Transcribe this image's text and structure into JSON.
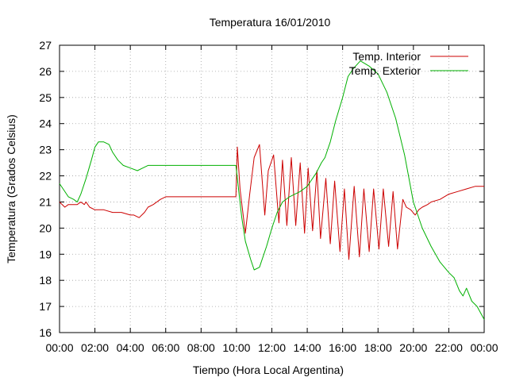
{
  "chart_data": {
    "type": "line",
    "title": "Temperatura 16/01/2010",
    "xlabel": "Tiempo (Hora Local Argentina)",
    "ylabel": "Temperatura (Grados Celsius)",
    "xlim": [
      0,
      24
    ],
    "ylim": [
      16,
      27
    ],
    "x_ticks": [
      0,
      2,
      4,
      6,
      8,
      10,
      12,
      14,
      16,
      18,
      20,
      22,
      24
    ],
    "x_tick_labels": [
      "00:00",
      "02:00",
      "04:00",
      "06:00",
      "08:00",
      "10:00",
      "12:00",
      "14:00",
      "16:00",
      "18:00",
      "20:00",
      "22:00",
      "00:00"
    ],
    "y_ticks": [
      16,
      17,
      18,
      19,
      20,
      21,
      22,
      23,
      24,
      25,
      26,
      27
    ],
    "y_tick_labels": [
      "16",
      "17",
      "18",
      "19",
      "20",
      "21",
      "22",
      "23",
      "24",
      "25",
      "26",
      "27"
    ],
    "grid": true,
    "legend_position": "top-right",
    "series": [
      {
        "name": "Temp. Interior",
        "color": "#cc0000",
        "x": [
          0,
          0.3,
          0.5,
          0.7,
          1.0,
          1.2,
          1.4,
          1.5,
          1.7,
          2.0,
          2.5,
          3.0,
          3.5,
          4.0,
          4.2,
          4.5,
          4.8,
          5.0,
          5.3,
          5.7,
          6.0,
          7.0,
          8.0,
          9.0,
          9.97,
          10.05,
          10.2,
          10.5,
          10.75,
          11.0,
          11.3,
          11.6,
          11.8,
          12.1,
          12.4,
          12.6,
          12.85,
          13.1,
          13.35,
          13.6,
          13.85,
          14.05,
          14.3,
          14.55,
          14.75,
          15.05,
          15.3,
          15.55,
          15.85,
          16.1,
          16.35,
          16.65,
          16.95,
          17.2,
          17.5,
          17.75,
          18.05,
          18.3,
          18.6,
          18.85,
          19.1,
          19.4,
          19.6,
          19.85,
          20.1,
          20.3,
          20.5,
          20.8,
          21.0,
          21.5,
          22.0,
          22.5,
          23.0,
          23.5,
          24.0
        ],
        "values": [
          21.0,
          20.8,
          20.9,
          20.9,
          20.9,
          21.0,
          20.9,
          21.0,
          20.8,
          20.7,
          20.7,
          20.6,
          20.6,
          20.5,
          20.5,
          20.4,
          20.6,
          20.8,
          20.9,
          21.1,
          21.2,
          21.2,
          21.2,
          21.2,
          21.2,
          23.1,
          21.5,
          19.8,
          21.3,
          22.7,
          23.2,
          20.5,
          22.2,
          22.8,
          20.2,
          22.6,
          20.1,
          22.7,
          20.1,
          22.5,
          19.8,
          22.3,
          19.9,
          22.2,
          19.6,
          21.9,
          19.4,
          21.8,
          19.1,
          21.5,
          18.8,
          21.6,
          18.9,
          21.5,
          19.1,
          21.5,
          19.2,
          21.5,
          19.3,
          21.4,
          19.2,
          21.1,
          20.8,
          20.7,
          20.5,
          20.7,
          20.8,
          20.9,
          21.0,
          21.1,
          21.3,
          21.4,
          21.5,
          21.6,
          21.6
        ]
      },
      {
        "name": "Temp. Exterior",
        "color": "#00b000",
        "x": [
          0,
          0.2,
          0.5,
          0.8,
          1.0,
          1.2,
          1.5,
          1.8,
          2.0,
          2.2,
          2.5,
          2.8,
          3.0,
          3.3,
          3.6,
          4.0,
          4.4,
          4.7,
          5.0,
          6.0,
          7.0,
          8.0,
          9.0,
          9.97,
          10.1,
          10.3,
          10.5,
          10.8,
          11.0,
          11.3,
          11.7,
          12.0,
          12.3,
          12.6,
          13.0,
          13.3,
          13.6,
          14.0,
          14.2,
          14.5,
          14.8,
          15.0,
          15.3,
          15.6,
          16.0,
          16.3,
          16.6,
          17.0,
          17.5,
          18.0,
          18.5,
          19.0,
          19.5,
          20.0,
          20.5,
          21.0,
          21.5,
          22.0,
          22.3,
          22.6,
          22.8,
          23.0,
          23.3,
          23.6,
          24.0
        ],
        "values": [
          21.7,
          21.5,
          21.2,
          21.1,
          21.0,
          21.3,
          21.9,
          22.6,
          23.1,
          23.3,
          23.3,
          23.2,
          22.9,
          22.6,
          22.4,
          22.3,
          22.2,
          22.3,
          22.4,
          22.4,
          22.4,
          22.4,
          22.4,
          22.4,
          21.6,
          20.4,
          19.5,
          18.8,
          18.4,
          18.5,
          19.3,
          20.0,
          20.6,
          21.0,
          21.2,
          21.3,
          21.4,
          21.6,
          21.8,
          22.1,
          22.5,
          22.7,
          23.3,
          24.1,
          25.0,
          25.8,
          26.1,
          26.4,
          26.2,
          25.9,
          25.2,
          24.2,
          22.8,
          21.0,
          20.0,
          19.3,
          18.7,
          18.3,
          18.1,
          17.6,
          17.4,
          17.7,
          17.2,
          17.0,
          16.5
        ]
      }
    ]
  }
}
